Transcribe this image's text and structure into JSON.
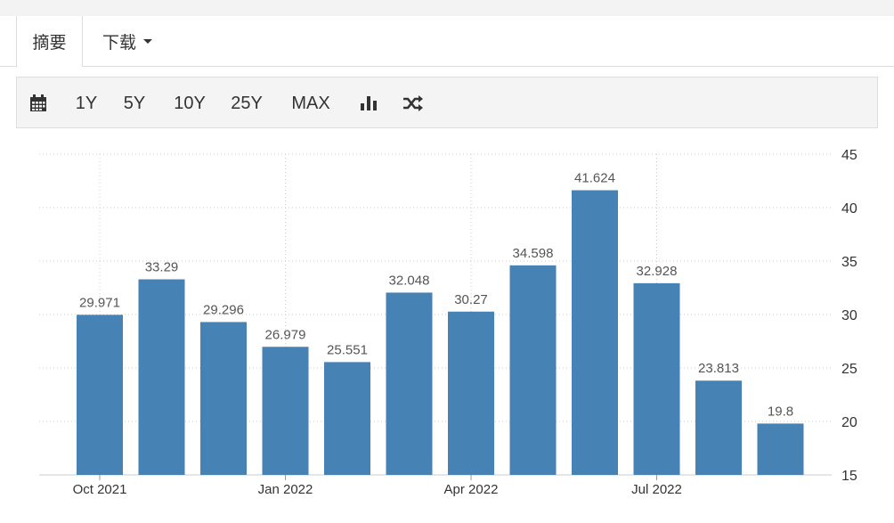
{
  "tabs": {
    "summary": "摘要",
    "download": "下载"
  },
  "toolbar": {
    "calendar_icon": "calendar-icon",
    "ranges": [
      "1Y",
      "5Y",
      "10Y",
      "25Y",
      "MAX"
    ],
    "chart_type_icon": "bar-chart-icon",
    "compare_icon": "shuffle-icon"
  },
  "colors": {
    "bar": "#4682b4",
    "grid": "#cccccc",
    "label": "#555555"
  },
  "chart_data": {
    "type": "bar",
    "values": [
      29.971,
      33.29,
      29.296,
      26.979,
      25.551,
      32.048,
      30.27,
      34.598,
      41.624,
      32.928,
      23.813,
      19.8
    ],
    "x_tick_labels": [
      "Oct 2021",
      "Jan 2022",
      "Apr 2022",
      "Jul 2022"
    ],
    "x_tick_bar_index": [
      0,
      3,
      6,
      9
    ],
    "y_ticks": [
      15,
      20,
      25,
      30,
      35,
      40,
      45
    ],
    "ylim": [
      15,
      45
    ],
    "y_axis_side": "right",
    "grid": true,
    "data_labels": true
  }
}
